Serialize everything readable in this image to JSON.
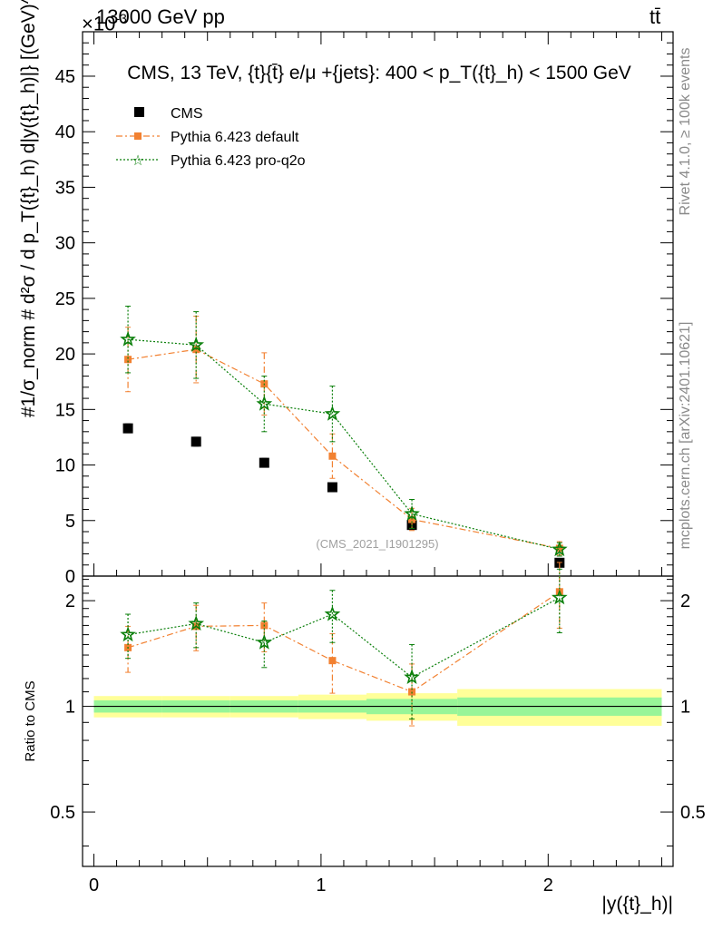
{
  "header": {
    "left": "13000 GeV pp",
    "right": "tt̄",
    "exponent_label": "×10",
    "exponent_power": "-3"
  },
  "side_text": {
    "rivet": "Rivet 4.1.0, ≥ 100k events",
    "source": "mcplots.cern.ch [arXiv:2401.10621]"
  },
  "colors": {
    "cms": "#000000",
    "default": "#f28131",
    "proq2o": "#0a7f0a",
    "band_inner": "#98f598",
    "band_outer": "#ffff99"
  },
  "chart_data": [
    {
      "type": "scatter",
      "title": "CMS, 13 TeV, {t}{t̄} e/μ +{jets}: 400 <  p_T({t}_h) < 1500 GeV",
      "ylabel": "#1/σ_norm # d²σ / d p_T({t}_h) d|y({t}_h)|} [(GeV)^-1]",
      "y_scale_label": "×10^-3",
      "watermark": "(CMS_2021_I1901295)",
      "xlim": [
        -0.05,
        2.55
      ],
      "ylim": [
        0,
        49
      ],
      "yticks": [
        0,
        5,
        10,
        15,
        20,
        25,
        30,
        35,
        40,
        45
      ],
      "legend_position": "top-left",
      "legend": [
        "CMS",
        "Pythia 6.423 default",
        "Pythia 6.423 pro-q2o"
      ],
      "series": [
        {
          "name": "CMS",
          "style": "square",
          "x": [
            0.15,
            0.45,
            0.75,
            1.05,
            1.4,
            2.05
          ],
          "y": [
            13.3,
            12.1,
            10.2,
            8.0,
            4.6,
            1.2
          ],
          "yerr": [
            0.4,
            0.4,
            0.4,
            0.3,
            0.4,
            0.15
          ]
        },
        {
          "name": "Pythia 6.423 default",
          "style": "dashdot-square",
          "x": [
            0.15,
            0.45,
            0.75,
            1.05,
            1.4,
            2.05
          ],
          "y": [
            19.5,
            20.4,
            17.3,
            10.8,
            5.1,
            2.5
          ],
          "yerr": [
            2.9,
            3.0,
            2.8,
            2.0,
            1.0,
            0.6
          ]
        },
        {
          "name": "Pythia 6.423 pro-q2o",
          "style": "dotted-star",
          "x": [
            0.15,
            0.45,
            0.75,
            1.05,
            1.4,
            2.05
          ],
          "y": [
            21.3,
            20.8,
            15.5,
            14.6,
            5.6,
            2.4
          ],
          "yerr": [
            3.0,
            3.0,
            2.5,
            2.5,
            1.3,
            0.6
          ]
        }
      ]
    },
    {
      "type": "scatter",
      "ylabel": "Ratio to CMS",
      "xlabel": "|y({t}_h)|",
      "xlim": [
        -0.05,
        2.55
      ],
      "ylim": [
        0.35,
        2.35
      ],
      "yticks": [
        0.5,
        1,
        2
      ],
      "xticks": [
        0,
        1,
        2
      ],
      "reference_line": 1,
      "bands": [
        {
          "x0": 0.0,
          "x1": 0.3,
          "inner": 0.04,
          "outer": 0.07
        },
        {
          "x0": 0.3,
          "x1": 0.6,
          "inner": 0.04,
          "outer": 0.07
        },
        {
          "x0": 0.6,
          "x1": 0.9,
          "inner": 0.04,
          "outer": 0.07
        },
        {
          "x0": 0.9,
          "x1": 1.2,
          "inner": 0.04,
          "outer": 0.08
        },
        {
          "x0": 1.2,
          "x1": 1.6,
          "inner": 0.05,
          "outer": 0.09
        },
        {
          "x0": 1.6,
          "x1": 2.5,
          "inner": 0.06,
          "outer": 0.12
        }
      ],
      "series": [
        {
          "name": "Pythia 6.423 default",
          "style": "dashdot-square",
          "x": [
            0.15,
            0.45,
            0.75,
            1.05,
            1.4,
            2.05
          ],
          "y": [
            1.47,
            1.69,
            1.7,
            1.35,
            1.1,
            2.12
          ],
          "yerr": [
            0.22,
            0.25,
            0.27,
            0.26,
            0.22,
            0.45
          ]
        },
        {
          "name": "Pythia 6.423 pro-q2o",
          "style": "dotted-star",
          "x": [
            0.15,
            0.45,
            0.75,
            1.05,
            1.4,
            2.05
          ],
          "y": [
            1.6,
            1.72,
            1.52,
            1.83,
            1.21,
            2.04
          ],
          "yerr": [
            0.23,
            0.25,
            0.23,
            0.31,
            0.29,
            0.42
          ]
        }
      ]
    }
  ]
}
